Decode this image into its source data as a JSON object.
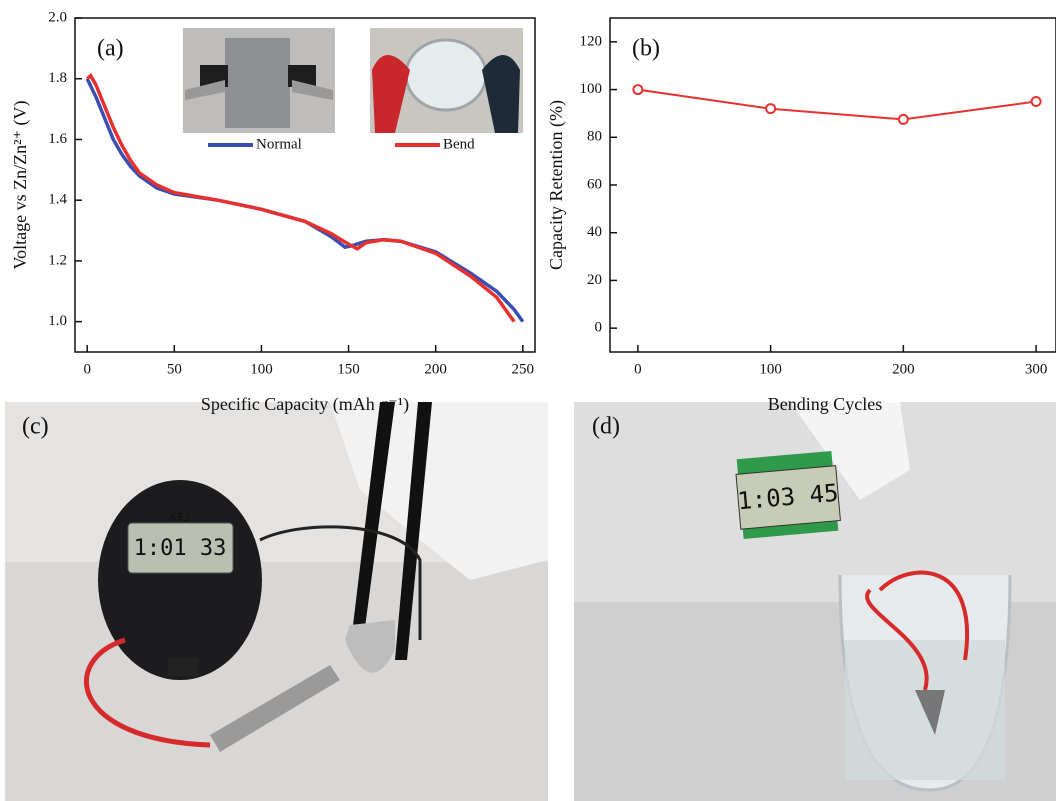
{
  "chart_data": [
    {
      "type": "line",
      "panel_label": "(a)",
      "x_label": "Specific Capacity (mAh g⁻¹)",
      "y_label": "Voltage vs Zn/Zn²⁺ (V)",
      "xlim": [
        -7,
        257
      ],
      "ylim": [
        0.9,
        2.0
      ],
      "xticks": [
        0,
        50,
        100,
        150,
        200,
        250
      ],
      "yticks": [
        {
          "value": 1,
          "label": "1.0"
        },
        1.2,
        1.4,
        1.6,
        1.8,
        {
          "value": 2,
          "label": "2.0"
        }
      ],
      "series": [
        {
          "name": "Normal",
          "color": "#3a4fb0",
          "x": [
            0,
            5,
            10,
            15,
            20,
            25,
            30,
            40,
            50,
            75,
            100,
            125,
            140,
            148,
            152,
            160,
            170,
            180,
            200,
            220,
            235,
            245,
            250
          ],
          "values": [
            1.8,
            1.74,
            1.67,
            1.6,
            1.55,
            1.51,
            1.48,
            1.44,
            1.42,
            1.4,
            1.37,
            1.33,
            1.28,
            1.245,
            1.25,
            1.265,
            1.27,
            1.265,
            1.23,
            1.16,
            1.1,
            1.04,
            1.0
          ]
        },
        {
          "name": "Bend",
          "color": "#e8312f",
          "x": [
            0,
            2,
            5,
            10,
            15,
            20,
            25,
            30,
            40,
            50,
            75,
            100,
            125,
            140,
            150,
            155,
            160,
            170,
            180,
            200,
            220,
            235,
            245
          ],
          "values": [
            1.8,
            1.81,
            1.78,
            1.71,
            1.64,
            1.58,
            1.53,
            1.49,
            1.45,
            1.425,
            1.4,
            1.37,
            1.33,
            1.29,
            1.255,
            1.24,
            1.26,
            1.27,
            1.265,
            1.225,
            1.15,
            1.08,
            1.0
          ]
        }
      ]
    },
    {
      "type": "line",
      "marker": "hollow-circle",
      "panel_label": "(b)",
      "x_label": "Bending Cycles",
      "y_label": "Capacity Retention (%)",
      "xlim": [
        -21,
        315
      ],
      "ylim": [
        -10,
        130
      ],
      "xticks": [
        0,
        100,
        200,
        300
      ],
      "yticks": [
        0,
        20,
        40,
        60,
        80,
        100,
        120
      ],
      "series": [
        {
          "color": "#e8312f",
          "x": [
            0,
            100,
            200,
            300
          ],
          "values": [
            100,
            92,
            87.5,
            95
          ]
        }
      ]
    }
  ],
  "photos": [
    {
      "label": "(c)",
      "texts": [
        "KTJ",
        "1:01 33"
      ]
    },
    {
      "label": "(d)",
      "texts": [
        "1:03 45"
      ]
    }
  ]
}
